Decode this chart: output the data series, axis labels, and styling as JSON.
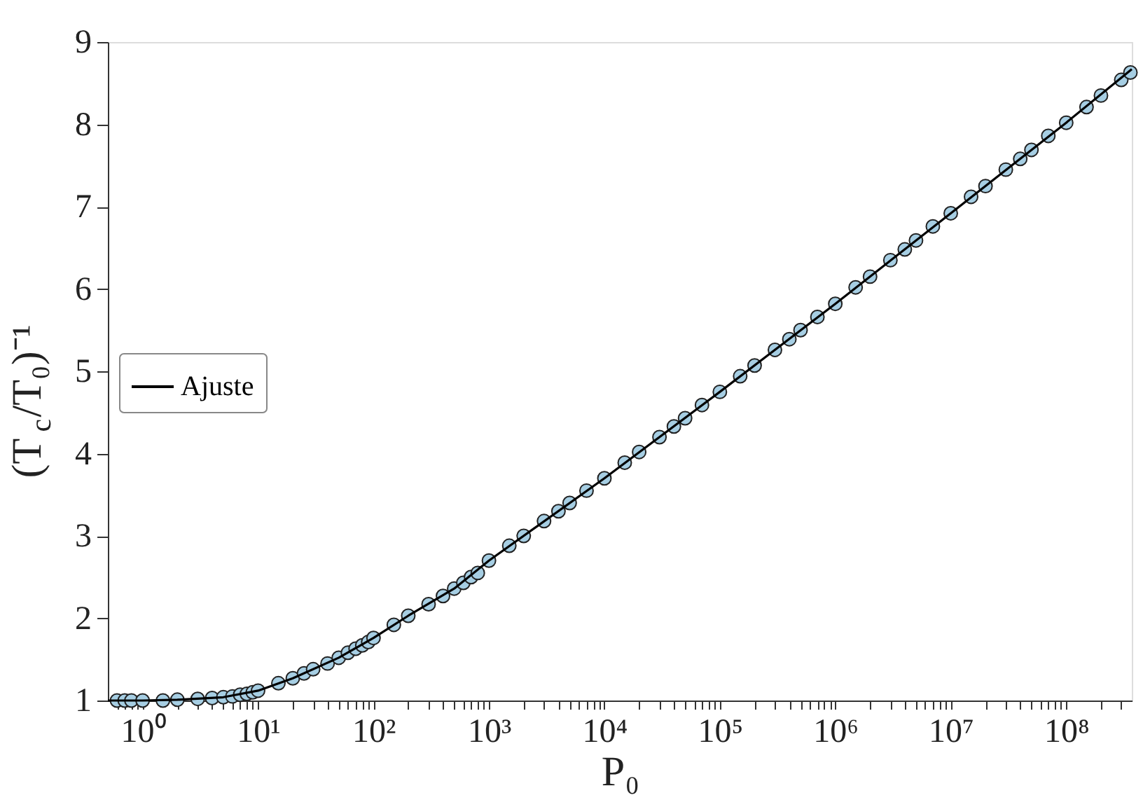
{
  "chart_data": {
    "type": "scatter",
    "xlabel": "P₀",
    "ylabel": "(T$_{c}$/T₀)⁻¹",
    "log": "x",
    "xlim": [
      0.5,
      370000000
    ],
    "ylim": [
      1,
      9
    ],
    "yticks": [
      1,
      2,
      3,
      4,
      5,
      6,
      7,
      8,
      9
    ],
    "xticks": [
      {
        "value": 0.6,
        "label": null
      },
      {
        "value": 0.7,
        "label": null
      },
      {
        "value": 0.8,
        "label": null
      },
      {
        "value": 0.9,
        "label": null
      },
      {
        "value": 1,
        "label": "10⁰"
      },
      {
        "value": 2,
        "label": null
      },
      {
        "value": 3,
        "label": null
      },
      {
        "value": 4,
        "label": null
      },
      {
        "value": 5,
        "label": null
      },
      {
        "value": 6,
        "label": null
      },
      {
        "value": 7,
        "label": null
      },
      {
        "value": 8,
        "label": null
      },
      {
        "value": 9,
        "label": null
      },
      {
        "value": 10,
        "label": "10¹"
      },
      {
        "value": 20,
        "label": null
      },
      {
        "value": 30,
        "label": null
      },
      {
        "value": 40,
        "label": null
      },
      {
        "value": 50,
        "label": null
      },
      {
        "value": 60,
        "label": null
      },
      {
        "value": 70,
        "label": null
      },
      {
        "value": 80,
        "label": null
      },
      {
        "value": 90,
        "label": null
      },
      {
        "value": 100,
        "label": "10²"
      },
      {
        "value": 200,
        "label": null
      },
      {
        "value": 300,
        "label": null
      },
      {
        "value": 400,
        "label": null
      },
      {
        "value": 500,
        "label": null
      },
      {
        "value": 600,
        "label": null
      },
      {
        "value": 700,
        "label": null
      },
      {
        "value": 800,
        "label": null
      },
      {
        "value": 900,
        "label": null
      },
      {
        "value": 1000,
        "label": "10³"
      },
      {
        "value": 2000,
        "label": null
      },
      {
        "value": 3000,
        "label": null
      },
      {
        "value": 4000,
        "label": null
      },
      {
        "value": 5000,
        "label": null
      },
      {
        "value": 6000,
        "label": null
      },
      {
        "value": 7000,
        "label": null
      },
      {
        "value": 8000,
        "label": null
      },
      {
        "value": 9000,
        "label": null
      },
      {
        "value": 10000,
        "label": "10⁴"
      },
      {
        "value": 20000,
        "label": null
      },
      {
        "value": 30000,
        "label": null
      },
      {
        "value": 40000,
        "label": null
      },
      {
        "value": 50000,
        "label": null
      },
      {
        "value": 60000,
        "label": null
      },
      {
        "value": 70000,
        "label": null
      },
      {
        "value": 80000,
        "label": null
      },
      {
        "value": 90000,
        "label": null
      },
      {
        "value": 100000,
        "label": "10⁵"
      },
      {
        "value": 200000,
        "label": null
      },
      {
        "value": 300000,
        "label": null
      },
      {
        "value": 400000,
        "label": null
      },
      {
        "value": 500000,
        "label": null
      },
      {
        "value": 600000,
        "label": null
      },
      {
        "value": 700000,
        "label": null
      },
      {
        "value": 800000,
        "label": null
      },
      {
        "value": 900000,
        "label": null
      },
      {
        "value": 1000000,
        "label": "10⁶"
      },
      {
        "value": 2000000,
        "label": null
      },
      {
        "value": 3000000,
        "label": null
      },
      {
        "value": 4000000,
        "label": null
      },
      {
        "value": 5000000,
        "label": null
      },
      {
        "value": 6000000,
        "label": null
      },
      {
        "value": 7000000,
        "label": null
      },
      {
        "value": 8000000,
        "label": null
      },
      {
        "value": 9000000,
        "label": null
      },
      {
        "value": 10000000,
        "label": "10⁷"
      },
      {
        "value": 20000000,
        "label": null
      },
      {
        "value": 30000000,
        "label": null
      },
      {
        "value": 40000000,
        "label": null
      },
      {
        "value": 50000000,
        "label": null
      },
      {
        "value": 60000000,
        "label": null
      },
      {
        "value": 70000000,
        "label": null
      },
      {
        "value": 80000000,
        "label": null
      },
      {
        "value": 90000000,
        "label": null
      },
      {
        "value": 100000000,
        "label": "10⁸"
      },
      {
        "value": 200000000,
        "label": null
      },
      {
        "value": 300000000,
        "label": null
      }
    ],
    "legend": "left",
    "marker": "circle",
    "series": [
      {
        "color": "#a6cee3",
        "x": [
          0.6,
          0.7,
          0.8,
          1,
          1.5,
          2,
          3,
          4,
          5,
          6,
          7,
          8,
          9,
          10,
          15,
          20,
          25,
          30,
          40,
          50,
          60,
          70,
          80,
          90,
          100,
          150,
          200,
          300,
          400,
          500,
          600,
          700,
          800,
          1000,
          1500,
          2000,
          3000,
          4000,
          5000,
          7000,
          10000,
          15000,
          20000,
          30000,
          40000,
          50000,
          70000,
          100000,
          150000,
          200000,
          300000,
          400000,
          500000,
          700000,
          1000000,
          1500000,
          2000000,
          3000000,
          4000000,
          5000000,
          7000000,
          10000000,
          15000000,
          20000000,
          30000000,
          40000000,
          50000000,
          70000000,
          100000000,
          150000000,
          200000000,
          300000000,
          360000000
        ],
        "values": [
          1.0,
          1.0,
          1.0,
          1.0,
          1.0,
          1.01,
          1.02,
          1.03,
          1.04,
          1.05,
          1.07,
          1.08,
          1.1,
          1.12,
          1.21,
          1.27,
          1.33,
          1.38,
          1.45,
          1.52,
          1.58,
          1.63,
          1.67,
          1.71,
          1.76,
          1.92,
          2.03,
          2.17,
          2.27,
          2.36,
          2.43,
          2.5,
          2.55,
          2.7,
          2.88,
          3.0,
          3.18,
          3.3,
          3.4,
          3.55,
          3.7,
          3.89,
          4.02,
          4.2,
          4.33,
          4.43,
          4.59,
          4.75,
          4.94,
          5.07,
          5.26,
          5.39,
          5.5,
          5.66,
          5.82,
          6.02,
          6.15,
          6.35,
          6.48,
          6.59,
          6.76,
          6.92,
          7.12,
          7.25,
          7.45,
          7.58,
          7.69,
          7.86,
          8.02,
          8.21,
          8.35,
          8.54,
          8.63
        ]
      },
      {
        "type": "line",
        "name": "Ajuste",
        "color": "#000000",
        "line_style": "solid",
        "marker": "none",
        "x": [
          0.5,
          1,
          2,
          5,
          10,
          20,
          50,
          100,
          200,
          500,
          1000,
          10000,
          100000,
          1000000,
          10000000,
          100000000,
          370000000
        ],
        "values": [
          1.0,
          1.0,
          1.01,
          1.04,
          1.12,
          1.27,
          1.52,
          1.76,
          2.03,
          2.36,
          2.7,
          3.7,
          4.75,
          5.82,
          6.92,
          8.02,
          8.67
        ]
      }
    ]
  }
}
